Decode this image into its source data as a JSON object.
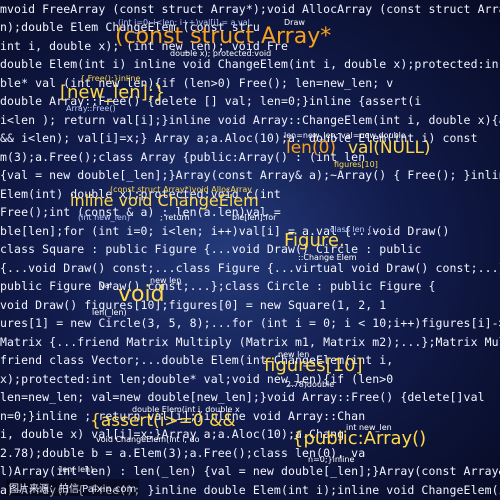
{
  "lines": [
    "mvoid FreeArray (const struct Array*);void AllocArray (const struct Arra",
    "n);double Elem                                     ChangeElem (const stru",
    "int i, double x);                               (int new_len);   void Fre",
    "double Elem(int i) inline void ChangeElem(int i, double x);protected:in",
    "ble* val         (int new_len){if (len>0) Free(); len=new_len; v",
    "double                       Array::Free() {delete [] val; len=0;}inline {assert(i",
    "i<len ); return val[i];}inline void Array::ChangeElem(int i, double x){asse",
    "&& i<len); val[i]=x;} Array a;a.Aloc(10);a.    double Elem(int i) const",
    "m(3);a.Free();class Array {public:Array() :                      (int len",
    "{val = new double[_len];}Array(const Array& a);~Array() { Free(); }inline",
    "Elem(int)                                  double x);protected:void c(int",
    "Free();int                                     (const  &  a) : len(a.len)val =",
    "ble[len];for (int i=0; i<len; i++)val[i] = a.val          {...void Draw()",
    "class Square : public Figure {...void Draw()           Circle : public",
    "{...void Draw() const;...class Figure {...virtual void Draw() const;...};class S",
    "public Figure                   Draw() const;...};class Circle : public Figure {",
    "void Draw()                    figures[10];figures[0] = new Square(1, 2, 1",
    "ures[1] = new Circle(3, 5, 8);...for (int i = 0; i < 10;i++)figures[i]->Draw();",
    "Matrix {...friend Matrix Multiply (Matrix m1, Matrix m2);...};Matrix Multip",
    "friend class Vector;...double Elem(int                ChangeElem(int i,",
    "x);protected:int len;double* val;void                          new_len){if (len>0",
    "len=new_len; val=new double[new_len];}void Array::Free() {delete[]val",
    "n=0;}inline                                 ; return val[i];}inline void Array::Chan",
    "i, double x)                                 val[i]=x;}Array a;a.Aloc(10);a.Chang",
    "2.78);double b = a.Elem(3);a.Free();class             len(0), va",
    "l)Array(int    len) : len(_len) {val = new double[_len];}Array(const Array&",
    "a)~Array() { Free(); }inline double Elem(int i);inline void ChangeElem(int i, do"
  ],
  "highlights": [
    {
      "text": "(const struct Array*",
      "color": "orange"
    },
    {
      "text": "[new_len];}",
      "color": "yellow"
    },
    {
      "text": "len(0)",
      "color": "orange"
    },
    {
      "text": "val(NULL)",
      "color": "yellow"
    },
    {
      "text": "inline void ChangeElem",
      "color": "yellow"
    },
    {
      "text": "Figure.",
      "color": "yellow"
    },
    {
      "text": "void",
      "color": "yellow"
    },
    {
      "text": "figures[10]",
      "color": "yellow"
    },
    {
      "text": "{assert(i>=0 &&",
      "color": "yellow"
    },
    {
      "text": "{public:Array()",
      "color": "yellow"
    }
  ],
  "small_labels": [
    "(int i=0; i<len; i++)val[i] = a.val",
    "Draw",
    "double x); protected:void",
    "{ Free();}inline",
    "Array::Free()",
    "len=new_len; val=new double",
    "figures[10]",
    "(const struct Array*)void AllocArray",
    "(int new_len)",
    "; return",
    "ble[len]:for",
    "class   len  {...",
    "::Change Elem",
    "val",
    "len(_len)",
    "new   len",
    "len(  len)",
    "new    len",
    "2.78)double",
    "double Elem(int i, double x",
    "void ChangeElem(int i, do",
    "int new_len",
    "n=0;}inline"
  ],
  "watermark": "图片来源：拍信 Paixin.com"
}
